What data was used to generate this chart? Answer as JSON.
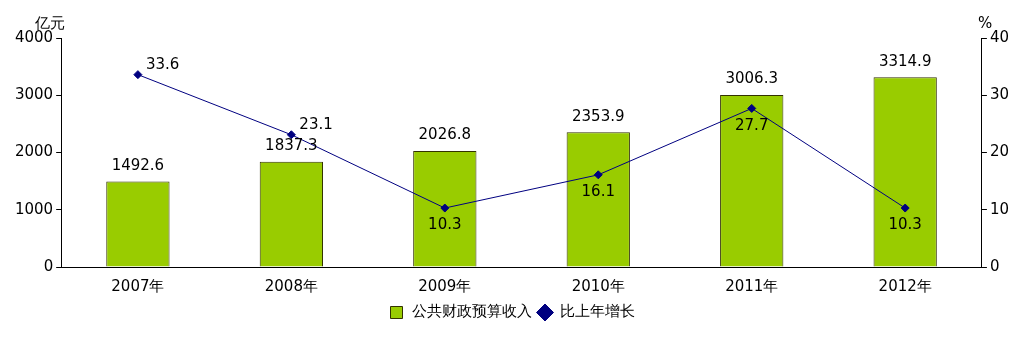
{
  "chart_data": {
    "type": "bar",
    "categories": [
      "2007年",
      "2008年",
      "2009年",
      "2010年",
      "2011年",
      "2012年"
    ],
    "ylabel": "亿元",
    "y2label": "%",
    "series": [
      {
        "name": "公共财政预算收入",
        "color": "#99cc00",
        "values": [
          1492.6,
          1837.3,
          2026.8,
          2353.9,
          3006.3,
          3314.9
        ]
      },
      {
        "name": "比上年增长",
        "type": "line",
        "axis": "y2",
        "color": "#000080",
        "marker": "diamond",
        "values": [
          33.6,
          23.1,
          10.3,
          16.1,
          27.7,
          10.3
        ]
      }
    ],
    "ylim": [
      0,
      4000
    ],
    "yticks": [
      0,
      1000,
      2000,
      3000,
      4000
    ],
    "y2lim": [
      0,
      40
    ],
    "y2ticks": [
      0,
      10,
      20,
      30,
      40
    ],
    "grid": false,
    "legend": "bottom",
    "data_labels": true
  }
}
